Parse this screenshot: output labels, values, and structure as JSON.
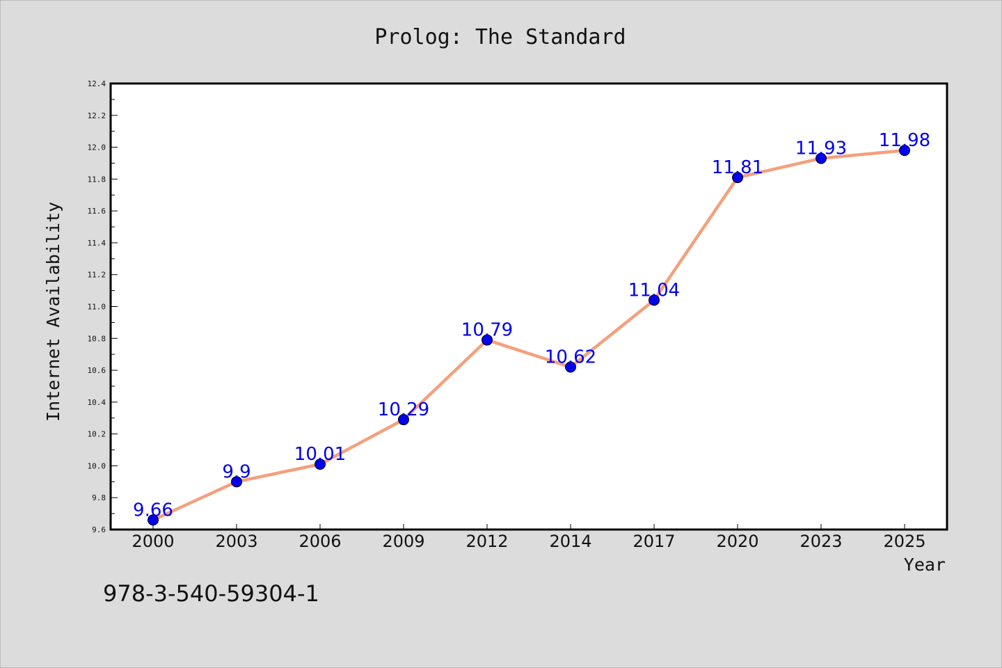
{
  "chart_data": {
    "type": "line",
    "title": "Prolog: The Standard",
    "xlabel": "Year",
    "ylabel": "Internet Availability",
    "categories": [
      "2000",
      "2003",
      "2006",
      "2009",
      "2012",
      "2014",
      "2017",
      "2020",
      "2023",
      "2025"
    ],
    "series": [
      {
        "values": [
          9.66,
          9.9,
          10.01,
          10.29,
          10.79,
          10.62,
          11.04,
          11.81,
          11.93,
          11.98
        ],
        "data_labels": [
          "9.66",
          "9.9",
          "10.01",
          "10.29",
          "10.79",
          "10.62",
          "11.04",
          "11.81",
          "11.93",
          "11.98"
        ],
        "line_color": "#f4a07c",
        "marker_color": "#0000ee",
        "label_color": "#0000ee"
      }
    ],
    "ylim": [
      9.6,
      12.4
    ],
    "yticks": [
      "9.6",
      "9.8",
      "10.0",
      "10.2",
      "10.4",
      "10.6",
      "10.8",
      "11.0",
      "11.2",
      "11.4",
      "11.6",
      "11.8",
      "12.0",
      "12.2",
      "12.4"
    ],
    "grid": false,
    "legend": "none"
  },
  "caption": "978-3-540-59304-1",
  "colors": {
    "background": "#dcdcdc",
    "plot_background": "#ffffff",
    "axis": "#000000"
  }
}
